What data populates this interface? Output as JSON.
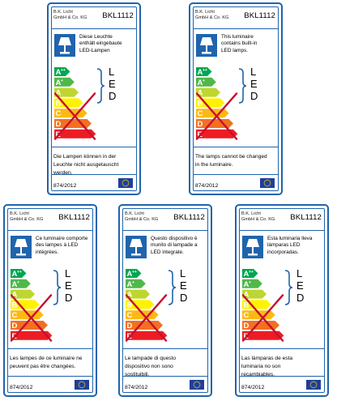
{
  "labels": [
    {
      "maker": [
        "B.K. Licht",
        "GmbH & Co. KG"
      ],
      "model": "BKL1112",
      "info": [
        "Diese Leuchte",
        "enthält eingebaute",
        "LED-Lampen"
      ],
      "bottom": [
        "Die Lampen können in der",
        "Leuchte nicht ausgetauscht",
        "werden."
      ],
      "regulation": "874/2012"
    },
    {
      "maker": [
        "B.K. Licht",
        "GmbH & Co. KG"
      ],
      "model": "BKL1112",
      "info": [
        "This luminaire",
        "contains built-in",
        "LED lamps."
      ],
      "bottom": [
        "The lamps cannot be changed",
        "in the luminaire."
      ],
      "regulation": "874/2012"
    },
    {
      "maker": [
        "B.K. Licht",
        "GmbH & Co. KG"
      ],
      "model": "BKL1112",
      "info": [
        "Ce luminaire comporte",
        "des lampes à LED",
        "intégrées."
      ],
      "bottom": [
        "Les lampes de ce luminaire ne",
        "peuvent pas être changées."
      ],
      "regulation": "874/2012"
    },
    {
      "maker": [
        "B.K. Licht",
        "GmbH & Co. KG"
      ],
      "model": "BKL1112",
      "info": [
        "Questo dispositivo è",
        "munito di lampade a",
        "LED integrate."
      ],
      "bottom": [
        "Le lampade di questo",
        "dispositivo non sono",
        "sostituibili."
      ],
      "regulation": "874/2012"
    },
    {
      "maker": [
        "B.K. Licht",
        "GmbH & Co. KG"
      ],
      "model": "BKL1112",
      "info": [
        "Esta luminaria lleva",
        "lámparas LED",
        "incorporadas."
      ],
      "bottom": [
        "Las lámparas de esta",
        "luminaria no son",
        "recambiables."
      ],
      "regulation": "874/2012"
    }
  ],
  "energy_classes": [
    {
      "letter": "A",
      "sup": "++",
      "color": "#00a651"
    },
    {
      "letter": "A",
      "sup": "+",
      "color": "#50b848"
    },
    {
      "letter": "A",
      "sup": "",
      "color": "#bed62f"
    },
    {
      "letter": "B",
      "sup": "",
      "color": "#fff200"
    },
    {
      "letter": "C",
      "sup": "",
      "color": "#fdb913"
    },
    {
      "letter": "D",
      "sup": "",
      "color": "#f37021"
    },
    {
      "letter": "E",
      "sup": "",
      "color": "#ed1c24"
    }
  ],
  "led_letters": [
    "L",
    "E",
    "D"
  ],
  "colors": {
    "frame": "#1f64ad",
    "cross": "#c8102e",
    "eu_flag": "#1f3e9c",
    "eu_stars": "#ffdd00"
  },
  "icons": {
    "lamp": "table-lamp-icon",
    "flag": "eu-flag-icon",
    "brace": "curly-brace"
  }
}
